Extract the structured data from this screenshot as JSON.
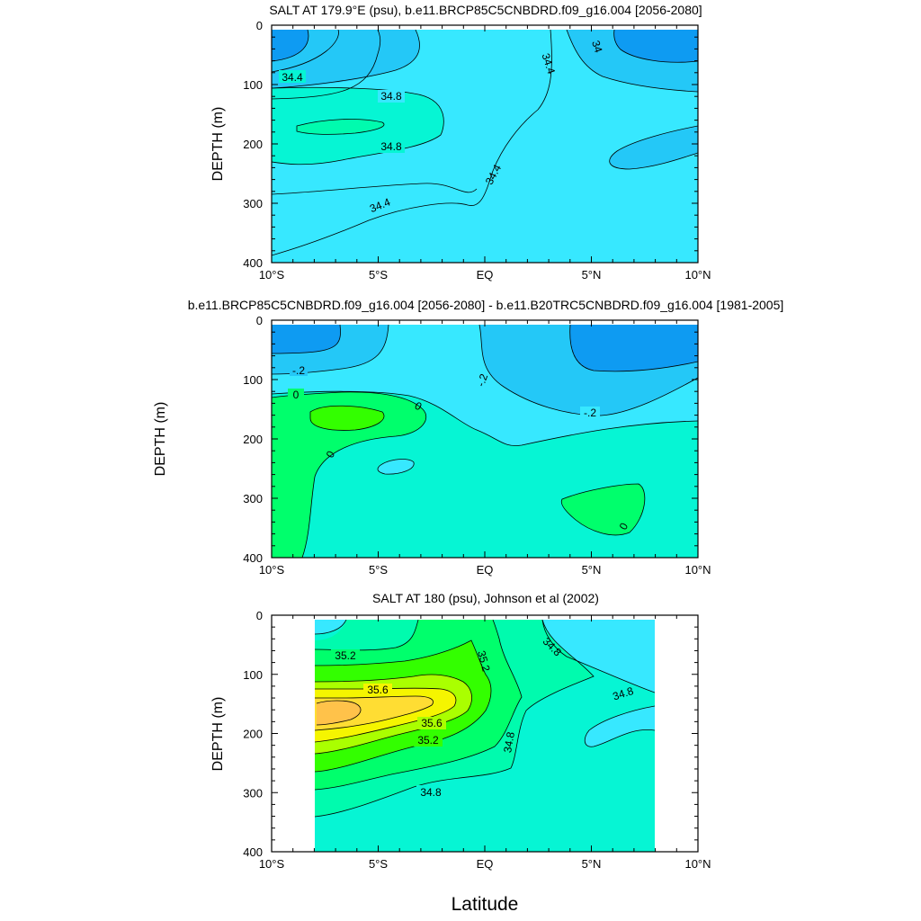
{
  "chart_data": [
    {
      "type": "contour",
      "title": "SALT AT 179.9°E (psu), b.e11.BRCP85C5CNBDRD.f09_g16.004 [2056-2080]",
      "ylabel": "DEPTH (m)",
      "xlabel": "",
      "x_ticks": [
        "10°S",
        "5°S",
        "EQ",
        "5°N",
        "10°N"
      ],
      "x_tick_values": [
        -10,
        -5,
        0,
        5,
        10
      ],
      "y_ticks": [
        "0",
        "100",
        "200",
        "300",
        "400"
      ],
      "y_tick_values": [
        0,
        100,
        200,
        300,
        400
      ],
      "xlim": [
        -10,
        10
      ],
      "ylim": [
        400,
        0
      ],
      "data_xrange": [
        -10,
        10
      ],
      "contour_labels": [
        "34.4",
        "34.8",
        "34.8",
        "34.4",
        "34.4",
        "34",
        "34.4"
      ],
      "colors": {
        "fresh": "#0E9BF2",
        "low": "#24C8F7",
        "mid": "#37E8FF",
        "high": "#06F5D4",
        "highest": "#00FBAE"
      }
    },
    {
      "type": "contour",
      "title": "b.e11.BRCP85C5CNBDRD.f09_g16.004 [2056-2080] - b.e11.B20TRC5CNBDRD.f09_g16.004 [1981-2005]",
      "ylabel": "DEPTH (m)",
      "xlabel": "",
      "x_ticks": [
        "10°S",
        "5°S",
        "EQ",
        "5°N",
        "10°N"
      ],
      "x_tick_values": [
        -10,
        -5,
        0,
        5,
        10
      ],
      "y_ticks": [
        "0",
        "100",
        "200",
        "300",
        "400"
      ],
      "y_tick_values": [
        0,
        100,
        200,
        300,
        400
      ],
      "xlim": [
        -10,
        10
      ],
      "ylim": [
        400,
        0
      ],
      "data_xrange": [
        -10,
        10
      ],
      "contour_labels": [
        "-.2",
        "-.2",
        "-.2",
        "0",
        "0",
        "0",
        "0"
      ],
      "colors": {
        "neg2": "#0E9BF2",
        "neg1": "#24C8F7",
        "neg0": "#37E8FF",
        "zero": "#06F5D4",
        "pos": "#00FF6C",
        "pos2": "#33FF00"
      }
    },
    {
      "type": "contour",
      "title": "SALT AT 180 (psu), Johnson et al (2002)",
      "ylabel": "DEPTH (m)",
      "xlabel": "Latitude",
      "x_ticks": [
        "10°S",
        "5°S",
        "EQ",
        "5°N",
        "10°N"
      ],
      "x_tick_values": [
        -10,
        -5,
        0,
        5,
        10
      ],
      "y_ticks": [
        "0",
        "100",
        "200",
        "300",
        "400"
      ],
      "y_tick_values": [
        0,
        100,
        200,
        300,
        400
      ],
      "xlim": [
        -10,
        10
      ],
      "ylim": [
        400,
        0
      ],
      "data_xrange": [
        -8,
        8
      ],
      "contour_labels": [
        "35.2",
        "35.6",
        "35.6",
        "35.2",
        "35.2",
        "34.8",
        "34.8",
        "34.8",
        "34.8"
      ],
      "colors": {
        "c1": "#37E8FF",
        "c2": "#06F5D4",
        "c3": "#00FBAE",
        "c4": "#00FF6C",
        "c5": "#33FF00",
        "c6": "#AAFF00",
        "c7": "#F5F500",
        "c8": "#FFDD33",
        "c9": "#FFC24A"
      }
    }
  ]
}
